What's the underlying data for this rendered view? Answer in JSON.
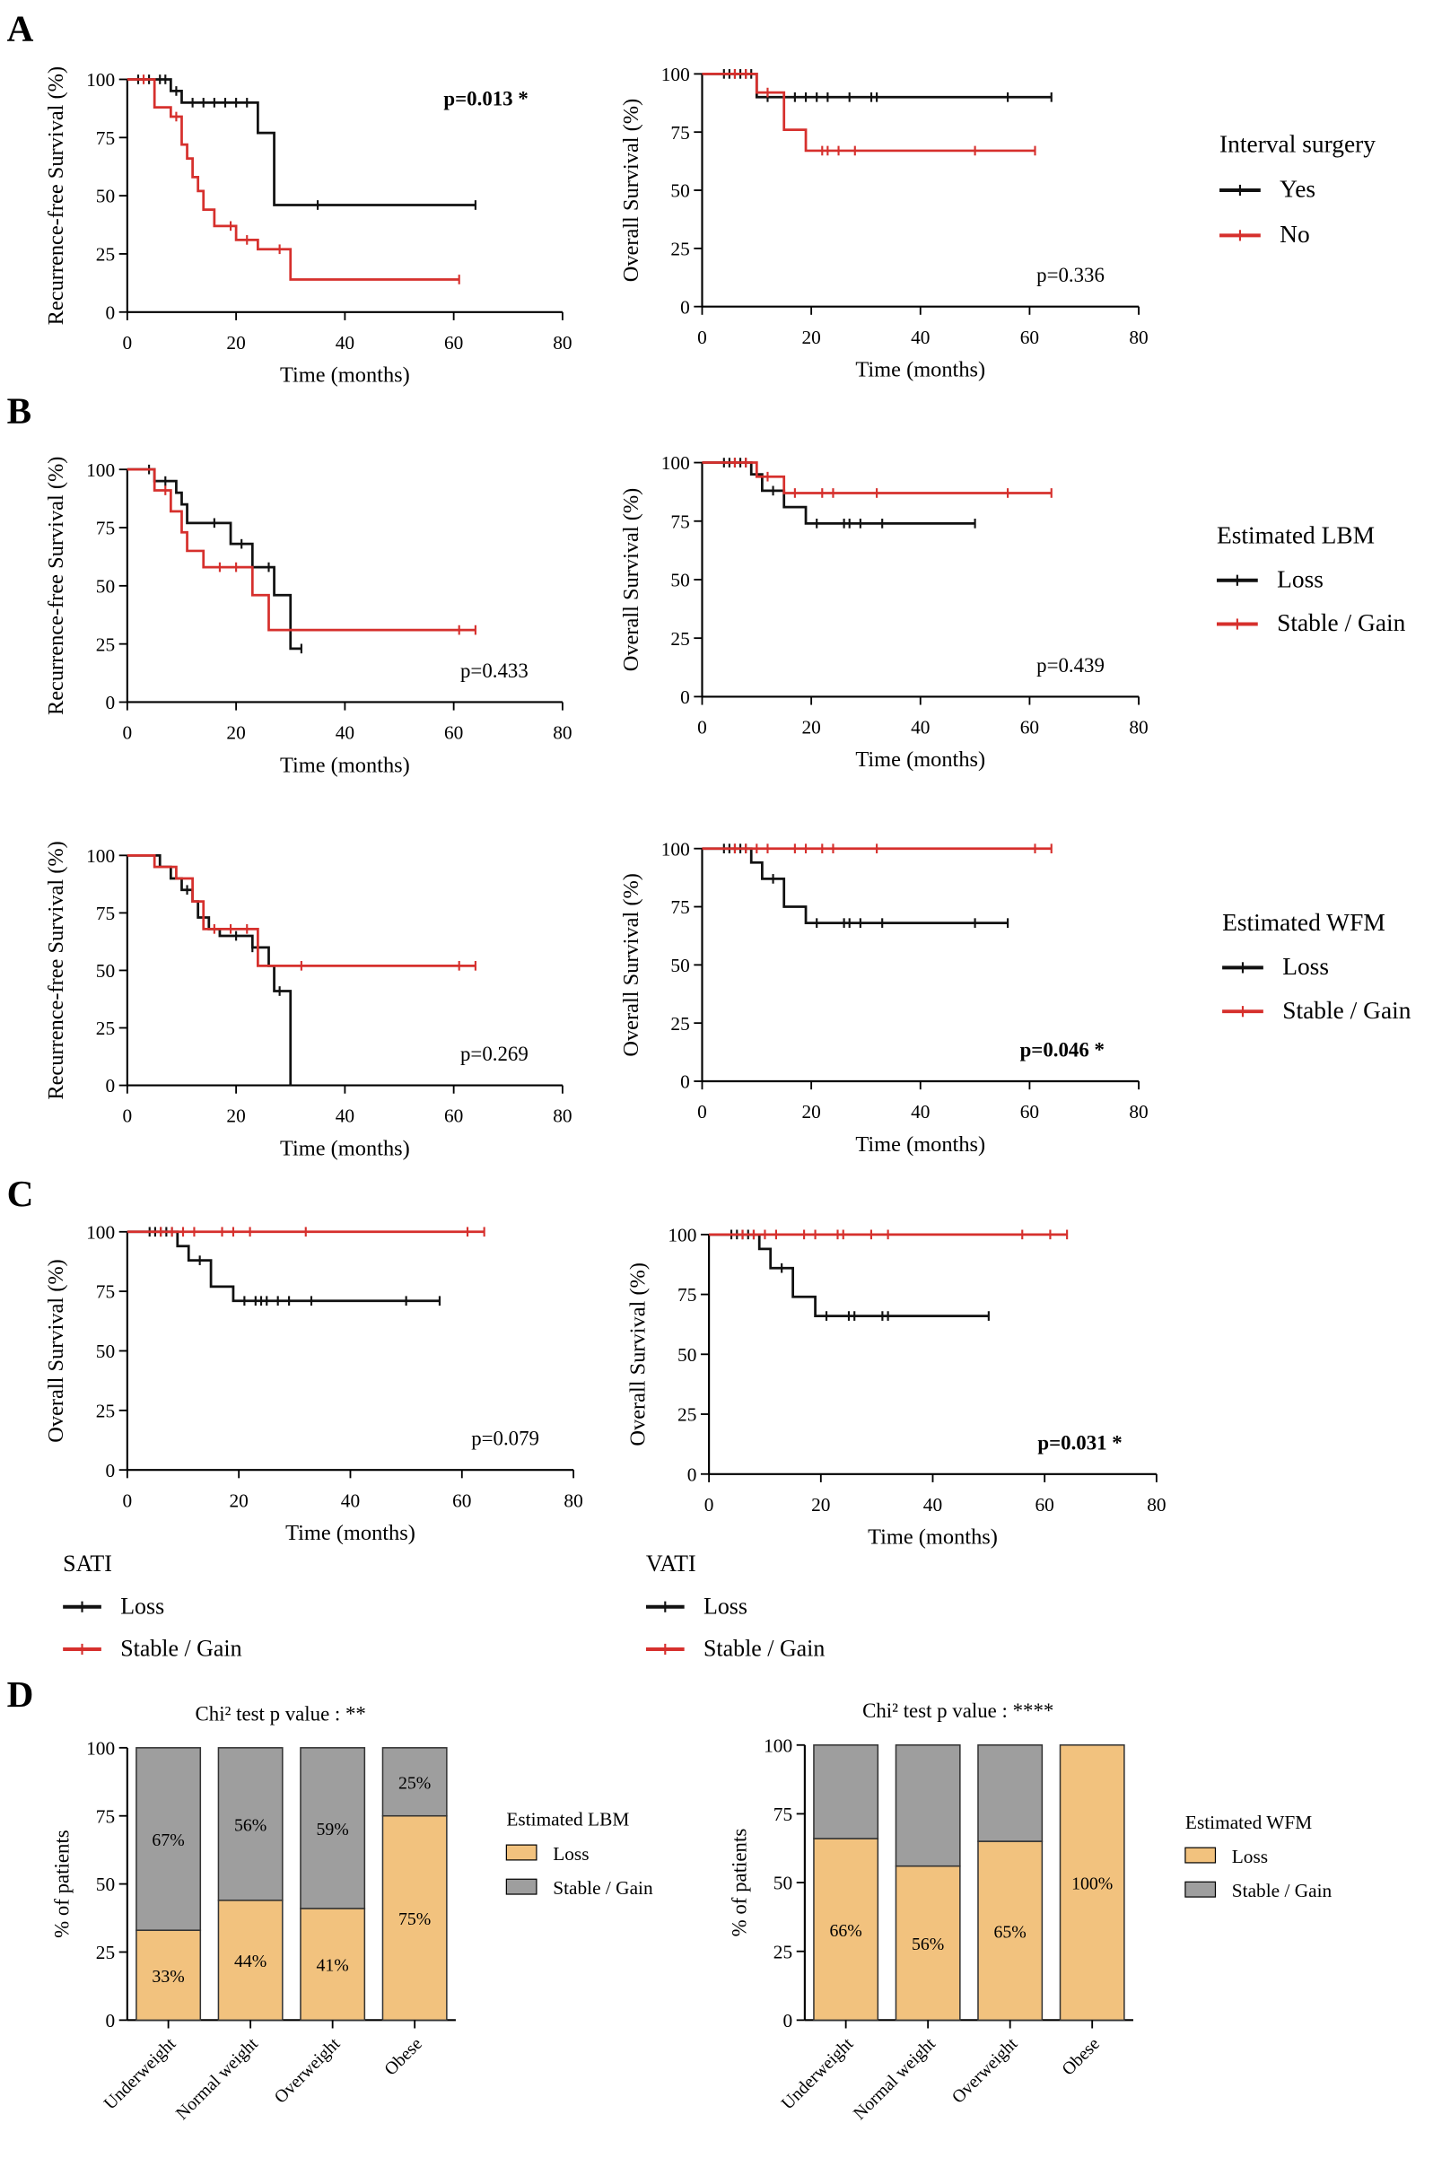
{
  "colors": {
    "black": "#111111",
    "red": "#d6302d",
    "loss_fill": "#f2c27e",
    "gain_fill": "#9e9e9e",
    "axis": "#000000"
  },
  "panel_letters": [
    "A",
    "B",
    "C",
    "D"
  ],
  "legends": {
    "interval": {
      "title": "Interval surgery",
      "items": [
        {
          "label": "Yes",
          "color": "#111111"
        },
        {
          "label": "No",
          "color": "#d6302d"
        }
      ]
    },
    "lbm": {
      "title": "Estimated LBM",
      "items": [
        {
          "label": "Loss",
          "color": "#111111"
        },
        {
          "label": "Stable / Gain",
          "color": "#d6302d"
        }
      ]
    },
    "wfm": {
      "title": "Estimated WFM",
      "items": [
        {
          "label": "Loss",
          "color": "#111111"
        },
        {
          "label": "Stable / Gain",
          "color": "#d6302d"
        }
      ]
    },
    "sati": {
      "title": "SATI",
      "items": [
        {
          "label": "Loss",
          "color": "#111111"
        },
        {
          "label": "Stable / Gain",
          "color": "#d6302d"
        }
      ]
    },
    "vati": {
      "title": "VATI",
      "items": [
        {
          "label": "Loss",
          "color": "#111111"
        },
        {
          "label": "Stable / Gain",
          "color": "#d6302d"
        }
      ]
    },
    "bar_lbm": {
      "title": "Estimated LBM",
      "items": [
        {
          "label": "Loss",
          "color": "#f2c27e"
        },
        {
          "label": "Stable / Gain",
          "color": "#9e9e9e"
        }
      ]
    },
    "bar_wfm": {
      "title": "Estimated WFM",
      "items": [
        {
          "label": "Loss",
          "color": "#f2c27e"
        },
        {
          "label": "Stable / Gain",
          "color": "#9e9e9e"
        }
      ]
    }
  },
  "chart_data": [
    {
      "id": "A1",
      "type": "line",
      "title": "",
      "xlabel": "Time (months)",
      "ylabel": "Recurrence-free Survival (%)",
      "xlim": [
        0,
        80
      ],
      "ylim": [
        0,
        100
      ],
      "xticks": [
        0,
        20,
        40,
        60,
        80
      ],
      "yticks": [
        0,
        25,
        50,
        75,
        100
      ],
      "p_text": "p=0.013 *",
      "p_bold": true,
      "p_pos": "top-right",
      "series": [
        {
          "name": "Yes",
          "color": "#111111",
          "x": [
            0,
            8,
            10,
            24,
            25,
            27,
            64
          ],
          "y": [
            100,
            95,
            90,
            77,
            77,
            46,
            46
          ],
          "censor_x": [
            2,
            4,
            6,
            7,
            9,
            12,
            14,
            16,
            18,
            20,
            22,
            35,
            64
          ]
        },
        {
          "name": "No",
          "color": "#d6302d",
          "x": [
            0,
            5,
            8,
            10,
            11,
            12,
            13,
            14,
            16,
            20,
            24,
            30,
            61
          ],
          "y": [
            100,
            88,
            84,
            72,
            66,
            58,
            52,
            44,
            37,
            31,
            27,
            14,
            14
          ],
          "censor_x": [
            3,
            9,
            19,
            22,
            28,
            61
          ]
        }
      ]
    },
    {
      "id": "A2",
      "type": "line",
      "title": "",
      "xlabel": "Time (months)",
      "ylabel": "Overall Survival (%)",
      "xlim": [
        0,
        80
      ],
      "ylim": [
        0,
        100
      ],
      "xticks": [
        0,
        20,
        40,
        60,
        80
      ],
      "yticks": [
        0,
        25,
        50,
        75,
        100
      ],
      "p_text": "p=0.336",
      "p_bold": false,
      "p_pos": "bottom-right",
      "series": [
        {
          "name": "Yes",
          "color": "#111111",
          "x": [
            0,
            10,
            64
          ],
          "y": [
            100,
            90,
            90
          ],
          "censor_x": [
            4,
            5,
            6,
            7,
            8,
            9,
            12,
            17,
            19,
            21,
            23,
            27,
            31,
            32,
            56,
            64
          ]
        },
        {
          "name": "No",
          "color": "#d6302d",
          "x": [
            0,
            10,
            15,
            19,
            61
          ],
          "y": [
            100,
            92,
            76,
            67,
            67
          ],
          "censor_x": [
            6,
            8,
            12,
            22,
            23,
            25,
            28,
            50,
            61
          ]
        }
      ]
    },
    {
      "id": "B1",
      "type": "line",
      "title": "",
      "xlabel": "Time (months)",
      "ylabel": "Recurrence-free Survival (%)",
      "xlim": [
        0,
        80
      ],
      "ylim": [
        0,
        100
      ],
      "xticks": [
        0,
        20,
        40,
        60,
        80
      ],
      "yticks": [
        0,
        25,
        50,
        75,
        100
      ],
      "p_text": "p=0.433",
      "p_bold": false,
      "p_pos": "bottom-right",
      "series": [
        {
          "name": "Loss",
          "color": "#111111",
          "x": [
            0,
            5,
            9,
            10,
            11,
            13,
            19,
            23,
            27,
            30,
            32
          ],
          "y": [
            100,
            95,
            90,
            85,
            77,
            77,
            68,
            58,
            46,
            23,
            23
          ],
          "censor_x": [
            4,
            7,
            16,
            21,
            26,
            32
          ]
        },
        {
          "name": "Stable / Gain",
          "color": "#d6302d",
          "x": [
            0,
            5,
            8,
            10,
            11,
            12,
            14,
            23,
            26,
            64
          ],
          "y": [
            100,
            91,
            82,
            73,
            65,
            65,
            58,
            46,
            31,
            31
          ],
          "censor_x": [
            7,
            17,
            20,
            61,
            64
          ]
        }
      ]
    },
    {
      "id": "B2",
      "type": "line",
      "title": "",
      "xlabel": "Time (months)",
      "ylabel": "Overall Survival (%)",
      "xlim": [
        0,
        80
      ],
      "ylim": [
        0,
        100
      ],
      "xticks": [
        0,
        20,
        40,
        60,
        80
      ],
      "yticks": [
        0,
        25,
        50,
        75,
        100
      ],
      "p_text": "p=0.439",
      "p_bold": false,
      "p_pos": "bottom-right",
      "series": [
        {
          "name": "Loss",
          "color": "#111111",
          "x": [
            0,
            9,
            11,
            15,
            19,
            50
          ],
          "y": [
            100,
            95,
            88,
            81,
            74,
            74
          ],
          "censor_x": [
            4,
            5,
            6,
            7,
            8,
            13,
            21,
            26,
            27,
            29,
            33,
            50
          ]
        },
        {
          "name": "Stable / Gain",
          "color": "#d6302d",
          "x": [
            0,
            10,
            15,
            64
          ],
          "y": [
            100,
            94,
            87,
            87
          ],
          "censor_x": [
            6,
            8,
            12,
            17,
            22,
            24,
            32,
            56,
            64
          ]
        }
      ]
    },
    {
      "id": "B3",
      "type": "line",
      "title": "",
      "xlabel": "Time (months)",
      "ylabel": "Recurrence-free Survival (%)",
      "xlim": [
        0,
        80
      ],
      "ylim": [
        0,
        100
      ],
      "xticks": [
        0,
        20,
        40,
        60,
        80
      ],
      "yticks": [
        0,
        25,
        50,
        75,
        100
      ],
      "p_text": "p=0.269",
      "p_bold": false,
      "p_pos": "bottom-right",
      "series": [
        {
          "name": "Loss",
          "color": "#111111",
          "x": [
            0,
            6,
            8,
            10,
            12,
            13,
            15,
            17,
            23,
            26,
            27,
            30
          ],
          "y": [
            100,
            95,
            90,
            85,
            80,
            73,
            68,
            65,
            60,
            52,
            41,
            0
          ],
          "censor_x": [
            11,
            20,
            23,
            28
          ]
        },
        {
          "name": "Stable / Gain",
          "color": "#d6302d",
          "x": [
            0,
            5,
            9,
            12,
            14,
            24,
            64
          ],
          "y": [
            100,
            95,
            90,
            80,
            68,
            52,
            52
          ],
          "censor_x": [
            16,
            19,
            22,
            32,
            61,
            64
          ]
        }
      ]
    },
    {
      "id": "B4",
      "type": "line",
      "title": "",
      "xlabel": "Time (months)",
      "ylabel": "Overall Survival (%)",
      "xlim": [
        0,
        80
      ],
      "ylim": [
        0,
        100
      ],
      "xticks": [
        0,
        20,
        40,
        60,
        80
      ],
      "yticks": [
        0,
        25,
        50,
        75,
        100
      ],
      "p_text": "p=0.046 *",
      "p_bold": true,
      "p_pos": "bottom-right",
      "series": [
        {
          "name": "Loss",
          "color": "#111111",
          "x": [
            0,
            9,
            11,
            15,
            19,
            56
          ],
          "y": [
            100,
            94,
            87,
            75,
            68,
            68
          ],
          "censor_x": [
            4,
            5,
            6,
            7,
            8,
            13,
            21,
            26,
            27,
            29,
            33,
            50,
            56
          ]
        },
        {
          "name": "Stable / Gain",
          "color": "#d6302d",
          "x": [
            0,
            64
          ],
          "y": [
            100,
            100
          ],
          "censor_x": [
            6,
            8,
            10,
            12,
            17,
            19,
            22,
            24,
            32,
            61,
            64
          ]
        }
      ]
    },
    {
      "id": "C1",
      "type": "line",
      "title": "",
      "xlabel": "Time (months)",
      "ylabel": "Overall Survival (%)",
      "xlim": [
        0,
        80
      ],
      "ylim": [
        0,
        100
      ],
      "xticks": [
        0,
        20,
        40,
        60,
        80
      ],
      "yticks": [
        0,
        25,
        50,
        75,
        100
      ],
      "p_text": "p=0.079",
      "p_bold": false,
      "p_pos": "bottom-right",
      "series": [
        {
          "name": "Loss",
          "color": "#111111",
          "x": [
            0,
            9,
            11,
            15,
            19,
            56
          ],
          "y": [
            100,
            94,
            88,
            77,
            71,
            71
          ],
          "censor_x": [
            4,
            5,
            6,
            7,
            8,
            13,
            21,
            23,
            24,
            25,
            27,
            29,
            33,
            50,
            56
          ]
        },
        {
          "name": "Stable / Gain",
          "color": "#d6302d",
          "x": [
            0,
            64
          ],
          "y": [
            100,
            100
          ],
          "censor_x": [
            6,
            8,
            10,
            12,
            17,
            19,
            22,
            32,
            61,
            64
          ]
        }
      ]
    },
    {
      "id": "C2",
      "type": "line",
      "title": "",
      "xlabel": "Time (months)",
      "ylabel": "Overall Survival (%)",
      "xlim": [
        0,
        80
      ],
      "ylim": [
        0,
        100
      ],
      "xticks": [
        0,
        20,
        40,
        60,
        80
      ],
      "yticks": [
        0,
        25,
        50,
        75,
        100
      ],
      "p_text": "p=0.031 *",
      "p_bold": true,
      "p_pos": "bottom-right",
      "series": [
        {
          "name": "Loss",
          "color": "#111111",
          "x": [
            0,
            9,
            11,
            15,
            19,
            50
          ],
          "y": [
            100,
            94,
            86,
            74,
            66,
            66
          ],
          "censor_x": [
            4,
            5,
            6,
            7,
            8,
            13,
            21,
            25,
            26,
            31,
            32,
            50
          ]
        },
        {
          "name": "Stable / Gain",
          "color": "#d6302d",
          "x": [
            0,
            64
          ],
          "y": [
            100,
            100
          ],
          "censor_x": [
            6,
            8,
            10,
            12,
            17,
            19,
            23,
            24,
            29,
            32,
            56,
            61,
            64
          ]
        }
      ]
    },
    {
      "id": "D1",
      "type": "bar",
      "stacked": true,
      "title": "Chi² test p value : **",
      "ylabel": "% of patients",
      "xlabel": "",
      "ylim": [
        0,
        100
      ],
      "yticks": [
        0,
        25,
        50,
        75,
        100
      ],
      "categories": [
        "Underweight",
        "Normal weight",
        "Overweight",
        "Obese"
      ],
      "series": [
        {
          "name": "Loss",
          "color": "#f2c27e",
          "values": [
            33,
            44,
            41,
            75
          ],
          "labels": [
            "33%",
            "44%",
            "41%",
            "75%"
          ]
        },
        {
          "name": "Stable / Gain",
          "color": "#9e9e9e",
          "values": [
            67,
            56,
            59,
            25
          ],
          "labels": [
            "67%",
            "56%",
            "59%",
            "25%"
          ]
        }
      ]
    },
    {
      "id": "D2",
      "type": "bar",
      "stacked": true,
      "title": "Chi² test p value : ****",
      "ylabel": "% of patients",
      "xlabel": "",
      "ylim": [
        0,
        100
      ],
      "yticks": [
        0,
        25,
        50,
        75,
        100
      ],
      "categories": [
        "Underweight",
        "Normal weight",
        "Overweight",
        "Obese"
      ],
      "series": [
        {
          "name": "Loss",
          "color": "#f2c27e",
          "values": [
            66,
            56,
            65,
            100
          ],
          "labels": [
            "66%",
            "56%",
            "65%",
            "100%"
          ]
        },
        {
          "name": "Stable / Gain",
          "color": "#9e9e9e",
          "values": [
            34,
            44,
            35,
            0
          ],
          "labels": [
            "",
            "",
            "",
            ""
          ]
        }
      ]
    }
  ]
}
